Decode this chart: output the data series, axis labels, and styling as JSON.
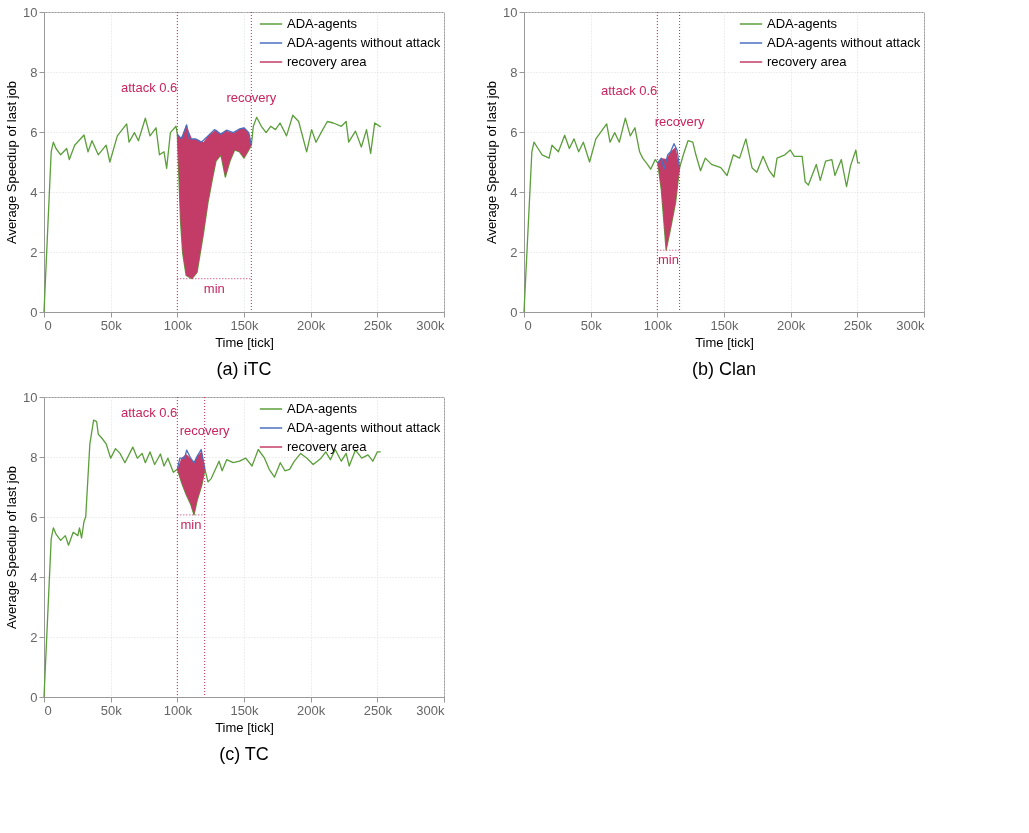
{
  "chart_data": [
    {
      "type": "line",
      "title": "(a) iTC",
      "xlabel": "Time [tick]",
      "ylabel": "Average Speedup of last job",
      "xlim": [
        0,
        300000
      ],
      "xticks": [
        0,
        {
          "value": 50000,
          "label": "50k"
        },
        {
          "value": 100000,
          "label": "100k"
        },
        {
          "value": 150000,
          "label": "150k"
        },
        {
          "value": 200000,
          "label": "200k"
        },
        {
          "value": 250000,
          "label": "250k"
        },
        {
          "value": 300000,
          "label": "300k"
        }
      ],
      "ylim": [
        0,
        10
      ],
      "yticks": [
        0,
        2,
        4,
        6,
        8,
        10
      ],
      "grid": true,
      "legend": "top right",
      "series": [
        {
          "name": "ADA-agents",
          "color": "#5b9e3a",
          "x": [
            0,
            5400,
            7000,
            9000,
            12500,
            17000,
            19000,
            23000,
            30000,
            33000,
            36000,
            40700,
            46600,
            49400,
            55000,
            62000,
            63800,
            67800,
            70800,
            76000,
            79500,
            84000,
            86600,
            90000,
            92000,
            94800,
            99000,
            100000,
            102400,
            104000,
            106600,
            111000,
            114800,
            119500,
            123000,
            126600,
            129000,
            132700,
            136000,
            139500,
            143000,
            146600,
            150000,
            153600,
            155500,
            157000,
            159500,
            163000,
            166600,
            170000,
            173600,
            177000,
            181900,
            186600,
            191000,
            197000,
            200700,
            204000,
            207800,
            212500,
            217000,
            223000,
            226600,
            228500,
            233600,
            238000,
            241900,
            245000,
            248000,
            252500
          ],
          "values": [
            0,
            5.34,
            5.66,
            5.45,
            5.24,
            5.45,
            5.08,
            5.56,
            5.9,
            5.34,
            5.71,
            5.24,
            5.56,
            5.0,
            5.87,
            6.27,
            5.66,
            5.98,
            5.71,
            6.46,
            5.87,
            6.14,
            5.24,
            5.34,
            4.79,
            5.98,
            6.19,
            5.93,
            3.02,
            1.96,
            1.22,
            1.11,
            1.32,
            2.59,
            3.65,
            4.5,
            5.03,
            5.24,
            4.5,
            5.03,
            5.4,
            5.34,
            5.13,
            5.4,
            5.56,
            6.19,
            6.49,
            6.19,
            5.98,
            6.19,
            6.08,
            6.3,
            5.87,
            6.56,
            6.35,
            5.34,
            6.08,
            5.66,
            5.98,
            6.35,
            6.3,
            6.19,
            6.35,
            5.66,
            6.03,
            5.5,
            6.08,
            5.29,
            6.3,
            6.17
          ]
        },
        {
          "name": "ADA-agents without attack",
          "color": "#4a6fc0",
          "x": [
            100000,
            103000,
            107000,
            109000,
            113600,
            118000,
            123000,
            127800,
            132500,
            137000,
            141900,
            146600,
            150000,
            153600,
            155500
          ],
          "values": [
            5.93,
            5.77,
            6.24,
            5.77,
            5.77,
            5.66,
            5.87,
            6.08,
            5.93,
            6.06,
            5.98,
            6.1,
            6.14,
            5.98,
            5.56
          ]
        },
        {
          "name": "recovery area",
          "type": "area",
          "color": "#c33c67",
          "x": [
            100000,
            102400,
            104000,
            106600,
            111000,
            114800,
            119500,
            123000,
            126600,
            129000,
            132700,
            136000,
            139500,
            143000,
            146600,
            150000,
            153600,
            155500
          ],
          "values": [
            5.93,
            5.8,
            5.9,
            6.24,
            5.77,
            5.77,
            5.66,
            5.87,
            6.0,
            6.08,
            5.93,
            6.06,
            6.0,
            5.98,
            6.1,
            6.14,
            5.98,
            5.56
          ]
        }
      ],
      "ref_lines": [
        {
          "axis": "x",
          "value": 100000,
          "label": "attack 0.6",
          "color": "#c8245e",
          "line_style": "dotted"
        },
        {
          "axis": "x",
          "value": 155500,
          "label": "recovery",
          "color": "#c8245e",
          "line_style": "dotted"
        },
        {
          "axis": "y",
          "value": 1.11,
          "label": "min",
          "color": "#c8245e",
          "line_style": "dotted"
        }
      ]
    },
    {
      "type": "line",
      "title": "(b) Clan",
      "xlabel": "Time [tick]",
      "ylabel": "Average Speedup of last job",
      "xlim": [
        0,
        300000
      ],
      "xticks": [
        0,
        {
          "value": 50000,
          "label": "50k"
        },
        {
          "value": 100000,
          "label": "100k"
        },
        {
          "value": 150000,
          "label": "150k"
        },
        {
          "value": 200000,
          "label": "200k"
        },
        {
          "value": 250000,
          "label": "250k"
        },
        {
          "value": 300000,
          "label": "300k"
        }
      ],
      "ylim": [
        0,
        10
      ],
      "yticks": [
        0,
        2,
        4,
        6,
        8,
        10
      ],
      "grid": true,
      "legend": "top right",
      "series": [
        {
          "name": "ADA-agents",
          "color": "#5b9e3a",
          "x": [
            0,
            5900,
            7500,
            10500,
            13600,
            18800,
            21000,
            25800,
            30500,
            34000,
            37500,
            41000,
            44500,
            49200,
            53900,
            62000,
            64500,
            68000,
            71500,
            76000,
            79700,
            83200,
            86700,
            89000,
            92600,
            95000,
            98400,
            100300,
            103000,
            106600,
            110000,
            113700,
            116700,
            119500,
            123000,
            126600,
            128900,
            132400,
            136000,
            140600,
            147600,
            152300,
            157000,
            161700,
            166400,
            171000,
            174600,
            179300,
            183900,
            187500,
            189800,
            195700,
            199700,
            202700,
            208600,
            210900,
            213300,
            219200,
            222200,
            226200,
            230900,
            233200,
            238000,
            241900,
            244900,
            248900,
            250300,
            252000
          ],
          "values": [
            0,
            5.34,
            5.66,
            5.45,
            5.24,
            5.13,
            5.56,
            5.34,
            5.89,
            5.45,
            5.77,
            5.34,
            5.66,
            5.0,
            5.77,
            6.27,
            5.66,
            5.98,
            5.66,
            6.46,
            5.87,
            6.14,
            5.34,
            5.13,
            4.92,
            4.76,
            5.08,
            4.97,
            4.07,
            2.06,
            2.8,
            3.65,
            4.81,
            5.24,
            5.71,
            5.66,
            5.24,
            4.71,
            5.13,
            4.92,
            4.81,
            4.55,
            5.24,
            5.13,
            5.77,
            4.81,
            4.66,
            5.19,
            4.71,
            4.5,
            5.13,
            5.24,
            5.4,
            5.19,
            5.19,
            4.34,
            4.23,
            4.92,
            4.39,
            5.03,
            5.08,
            4.55,
            5.08,
            4.18,
            4.87,
            5.4,
            4.97,
            4.97
          ]
        },
        {
          "name": "ADA-agents without attack",
          "color": "#4a6fc0",
          "x": [
            100300,
            103000,
            105000,
            107800,
            110000,
            112500,
            114800,
            116700
          ],
          "values": [
            4.97,
            5.13,
            4.76,
            5.24,
            5.34,
            5.61,
            5.4,
            4.81
          ]
        },
        {
          "name": "recovery area",
          "type": "area",
          "color": "#c33c67",
          "x": [
            100300,
            103000,
            106600,
            110000,
            113700,
            116700
          ],
          "values": [
            4.97,
            5.13,
            5.1,
            5.34,
            5.5,
            4.81
          ]
        }
      ],
      "ref_lines": [
        {
          "axis": "x",
          "value": 100000,
          "label": "attack 0.6",
          "color": "#c8245e",
          "line_style": "dotted"
        },
        {
          "axis": "x",
          "value": 116700,
          "label": "recovery",
          "color": "#c8245e",
          "line_style": "dotted"
        },
        {
          "axis": "y",
          "value": 2.06,
          "label": "min",
          "color": "#c8245e",
          "line_style": "dotted"
        }
      ]
    },
    {
      "type": "line",
      "title": "(c) TC",
      "xlabel": "Time [tick]",
      "ylabel": "Average Speedup of last job",
      "xlim": [
        0,
        300000
      ],
      "xticks": [
        0,
        {
          "value": 50000,
          "label": "50k"
        },
        {
          "value": 100000,
          "label": "100k"
        },
        {
          "value": 150000,
          "label": "150k"
        },
        {
          "value": 200000,
          "label": "200k"
        },
        {
          "value": 250000,
          "label": "250k"
        },
        {
          "value": 300000,
          "label": "300k"
        }
      ],
      "ylim": [
        0,
        10
      ],
      "yticks": [
        0,
        2,
        4,
        6,
        8,
        10
      ],
      "grid": true,
      "legend": "top right",
      "series": [
        {
          "name": "ADA-agents",
          "color": "#5b9e3a",
          "x": [
            0,
            5400,
            7000,
            9000,
            12500,
            16000,
            18400,
            21900,
            25400,
            26600,
            28200,
            30000,
            31300,
            34400,
            37200,
            39500,
            40700,
            43000,
            46600,
            50000,
            53600,
            57000,
            60700,
            66600,
            70000,
            73600,
            76000,
            79500,
            83000,
            87300,
            90000,
            92900,
            97000,
            100000,
            103000,
            106600,
            110000,
            112500,
            114800,
            118400,
            120700,
            123000,
            125400,
            131300,
            133600,
            137000,
            141900,
            146600,
            151300,
            156000,
            160700,
            165400,
            168900,
            172900,
            177200,
            180700,
            184200,
            187800,
            192500,
            197200,
            201900,
            207800,
            211300,
            214800,
            218400,
            223000,
            226600,
            228900,
            233600,
            238300,
            243000,
            246600,
            250000,
            252500
          ],
          "values": [
            0,
            5.27,
            5.64,
            5.43,
            5.22,
            5.38,
            5.06,
            5.49,
            5.38,
            5.64,
            5.3,
            5.85,
            6.01,
            8.44,
            9.23,
            9.18,
            8.76,
            8.65,
            8.44,
            7.96,
            8.28,
            8.12,
            7.81,
            8.33,
            7.96,
            8.12,
            7.81,
            8.17,
            7.75,
            8.1,
            7.7,
            7.96,
            7.49,
            7.59,
            7.17,
            6.75,
            6.43,
            6.07,
            6.54,
            7.07,
            7.59,
            7.17,
            7.28,
            7.86,
            7.54,
            7.91,
            7.81,
            7.86,
            7.96,
            7.7,
            8.25,
            7.96,
            7.59,
            7.33,
            7.81,
            7.54,
            7.59,
            7.86,
            8.12,
            7.96,
            7.75,
            7.96,
            8.17,
            7.91,
            8.25,
            7.86,
            8.12,
            7.7,
            8.23,
            7.96,
            8.07,
            7.86,
            8.17,
            8.17
          ]
        },
        {
          "name": "ADA-agents without attack",
          "color": "#4a6fc0",
          "x": [
            100000,
            101900,
            105400,
            107000,
            110000,
            112500,
            114800,
            117900,
            120700
          ],
          "values": [
            7.59,
            7.96,
            7.96,
            8.23,
            7.96,
            7.81,
            8.02,
            8.25,
            7.59
          ]
        },
        {
          "name": "recovery area",
          "type": "area",
          "color": "#c33c67",
          "x": [
            100000,
            103000,
            106600,
            110000,
            112500,
            114800,
            118400,
            120700
          ],
          "values": [
            7.59,
            7.96,
            8.1,
            7.96,
            7.81,
            8.02,
            8.2,
            7.59
          ]
        }
      ],
      "ref_lines": [
        {
          "axis": "x",
          "value": 100000,
          "label": "attack 0.6",
          "color": "#c8245e",
          "line_style": "dotted"
        },
        {
          "axis": "x",
          "value": 120500,
          "label": "recovery",
          "color": "#c8245e",
          "line_style": "dotted"
        },
        {
          "axis": "y",
          "value": 6.07,
          "label": "min",
          "color": "#c8245e",
          "line_style": "dotted"
        }
      ]
    }
  ]
}
